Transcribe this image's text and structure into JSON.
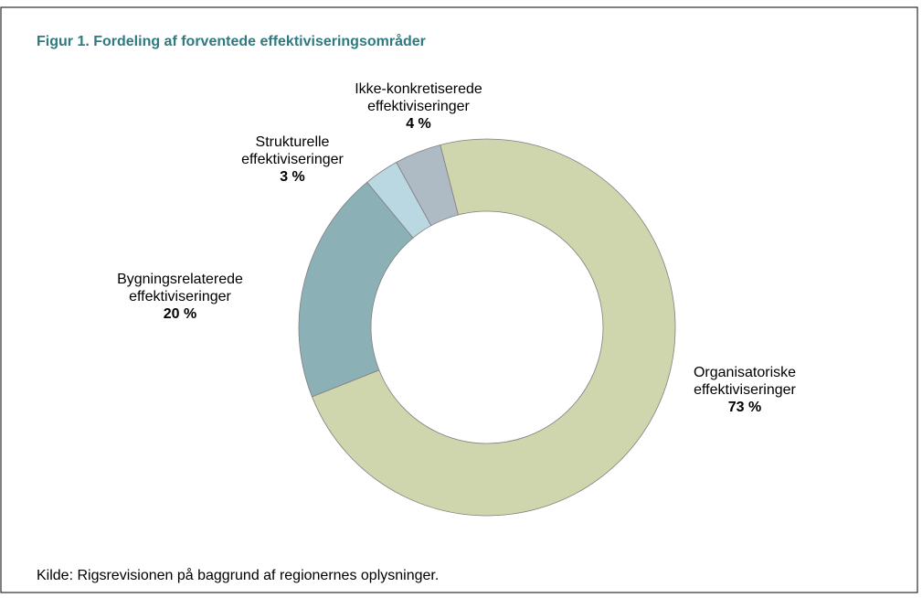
{
  "chart_data": {
    "type": "donut",
    "title": "Figur 1. Fordeling af forventede effektiviseringsområder",
    "categories": [
      "Organisatoriske effektiviseringer",
      "Bygningsrelaterede effektiviseringer",
      "Strukturelle effektiviseringer",
      "Ikke-konkretiserede effektiviseringer"
    ],
    "values": [
      73,
      20,
      3,
      4
    ],
    "value_labels": [
      "73 %",
      "20 %",
      "3 %",
      "4 %"
    ],
    "colors": [
      "#cfd5ad",
      "#8bb1b6",
      "#b9d8e1",
      "#aebbc4"
    ],
    "source": "Kilde:  Rigsrevisionen på baggrund af regionernes oplysninger."
  }
}
